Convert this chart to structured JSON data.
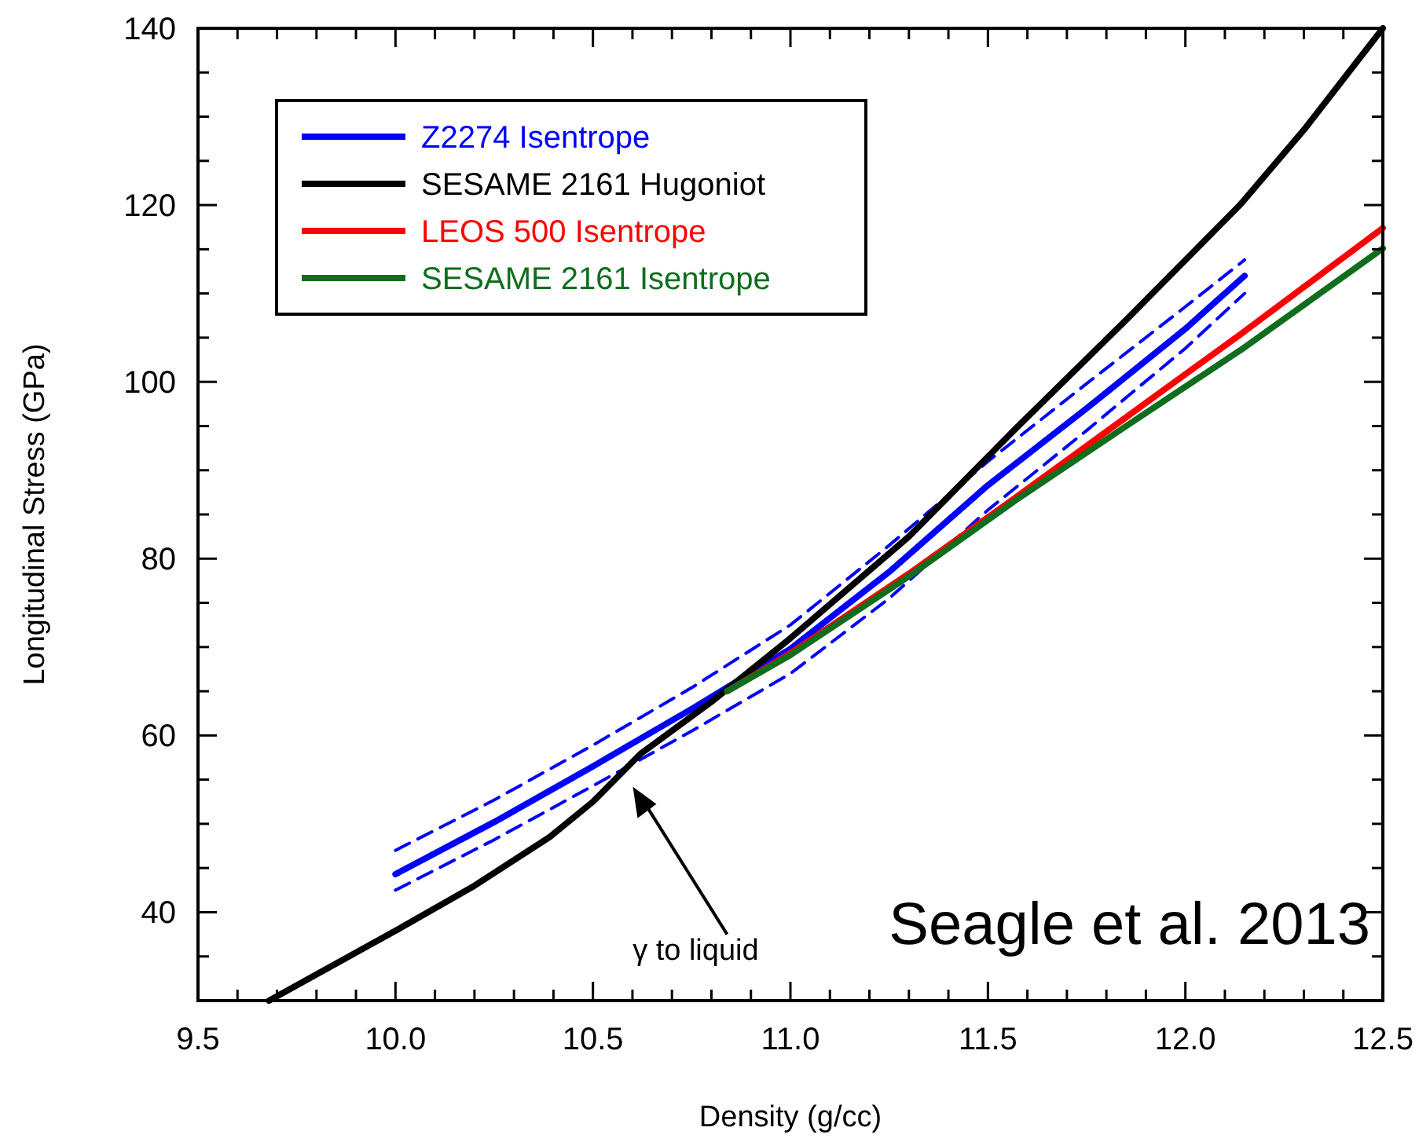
{
  "chart_data": {
    "type": "line",
    "xlabel": "Density (g/cc)",
    "ylabel": "Longitudinal Stress (GPa)",
    "xlim": [
      9.5,
      12.5
    ],
    "ylim": [
      30,
      140
    ],
    "xticks": [
      9.5,
      {
        "value": 9.6,
        "label": null
      },
      {
        "value": 9.7,
        "label": null
      },
      {
        "value": 9.8,
        "label": null
      },
      {
        "value": 9.9,
        "label": null
      },
      {
        "value": 10,
        "label": "10.0"
      },
      {
        "value": 10.1,
        "label": null
      },
      {
        "value": 10.2,
        "label": null
      },
      {
        "value": 10.3,
        "label": null
      },
      {
        "value": 10.4,
        "label": null
      },
      10.5,
      {
        "value": 10.6,
        "label": null
      },
      {
        "value": 10.7,
        "label": null
      },
      {
        "value": 10.8,
        "label": null
      },
      {
        "value": 10.9,
        "label": null
      },
      {
        "value": 11,
        "label": "11.0"
      },
      {
        "value": 11.1,
        "label": null
      },
      {
        "value": 11.2,
        "label": null
      },
      {
        "value": 11.3,
        "label": null
      },
      {
        "value": 11.4,
        "label": null
      },
      11.5,
      {
        "value": 11.6,
        "label": null
      },
      {
        "value": 11.7,
        "label": null
      },
      {
        "value": 11.8,
        "label": null
      },
      {
        "value": 11.9,
        "label": null
      },
      {
        "value": 12,
        "label": "12.0"
      },
      {
        "value": 12.1,
        "label": null
      },
      {
        "value": 12.2,
        "label": null
      },
      {
        "value": 12.3,
        "label": null
      },
      {
        "value": 12.4,
        "label": null
      },
      12.5
    ],
    "yticks": [
      {
        "value": 35,
        "label": null
      },
      40,
      {
        "value": 45,
        "label": null
      },
      {
        "value": 50,
        "label": null
      },
      {
        "value": 55,
        "label": null
      },
      60,
      {
        "value": 65,
        "label": null
      },
      {
        "value": 70,
        "label": null
      },
      {
        "value": 75,
        "label": null
      },
      80,
      {
        "value": 85,
        "label": null
      },
      {
        "value": 90,
        "label": null
      },
      {
        "value": 95,
        "label": null
      },
      100,
      {
        "value": 105,
        "label": null
      },
      {
        "value": 110,
        "label": null
      },
      {
        "value": 115,
        "label": null
      },
      120,
      {
        "value": 125,
        "label": null
      },
      {
        "value": 130,
        "label": null
      },
      {
        "value": 135,
        "label": null
      },
      140
    ],
    "legend": "top left",
    "grid": false,
    "marker": "none",
    "series": [
      {
        "name": "Z2274 Isentrope",
        "color": "#0000ff",
        "x": [
          10.0,
          10.25,
          10.5,
          10.75,
          11.0,
          11.25,
          11.5,
          11.75,
          12.0,
          12.15
        ],
        "values": [
          44.3,
          50.2,
          56.5,
          63.0,
          69.8,
          78.5,
          88.3,
          97.0,
          106.0,
          112.0
        ]
      },
      {
        "color": "#0000ff",
        "line_style": "dashed",
        "x": [
          10.0,
          10.25,
          10.5,
          10.75,
          11.0,
          11.25,
          11.5,
          11.75,
          12.0,
          12.15
        ],
        "values": [
          42.5,
          48.2,
          54.3,
          60.5,
          67.0,
          75.5,
          85.5,
          94.5,
          103.8,
          110.0
        ]
      },
      {
        "color": "#0000ff",
        "line_style": "dashed",
        "x": [
          10.0,
          10.25,
          10.5,
          10.75,
          11.0,
          11.25,
          11.5,
          11.75,
          12.0,
          12.15
        ],
        "values": [
          47.0,
          52.7,
          58.9,
          65.4,
          72.5,
          81.5,
          91.0,
          99.8,
          108.5,
          113.8
        ]
      },
      {
        "name": "SESAME 2161 Hugoniot",
        "color": "#000000",
        "x": [
          9.68,
          10.0,
          10.2,
          10.39,
          10.5,
          10.62,
          10.8,
          11.0,
          11.3,
          11.57,
          11.85,
          12.14,
          12.3,
          12.5
        ],
        "values": [
          30,
          37.9,
          43.0,
          48.5,
          52.5,
          57.9,
          63.8,
          71.0,
          82.5,
          94.7,
          107.0,
          120.1,
          128.5,
          140
        ]
      },
      {
        "name": "LEOS 500 Isentrope",
        "color": "#ff0000",
        "x": [
          10.84,
          11.0,
          11.3,
          11.57,
          11.85,
          12.14,
          12.5
        ],
        "values": [
          65.0,
          69.3,
          78.3,
          86.9,
          96.0,
          105.4,
          117.4
        ]
      },
      {
        "name": "SESAME 2161 Isentrope",
        "color": "#0f6e1e",
        "x": [
          10.84,
          11.0,
          11.3,
          11.57,
          11.85,
          12.14,
          12.5
        ],
        "values": [
          65.0,
          69.1,
          78.0,
          86.6,
          95.0,
          103.6,
          115.1
        ]
      }
    ],
    "annotations": [
      "γ to liquid",
      "Seagle et al. 2013"
    ]
  }
}
